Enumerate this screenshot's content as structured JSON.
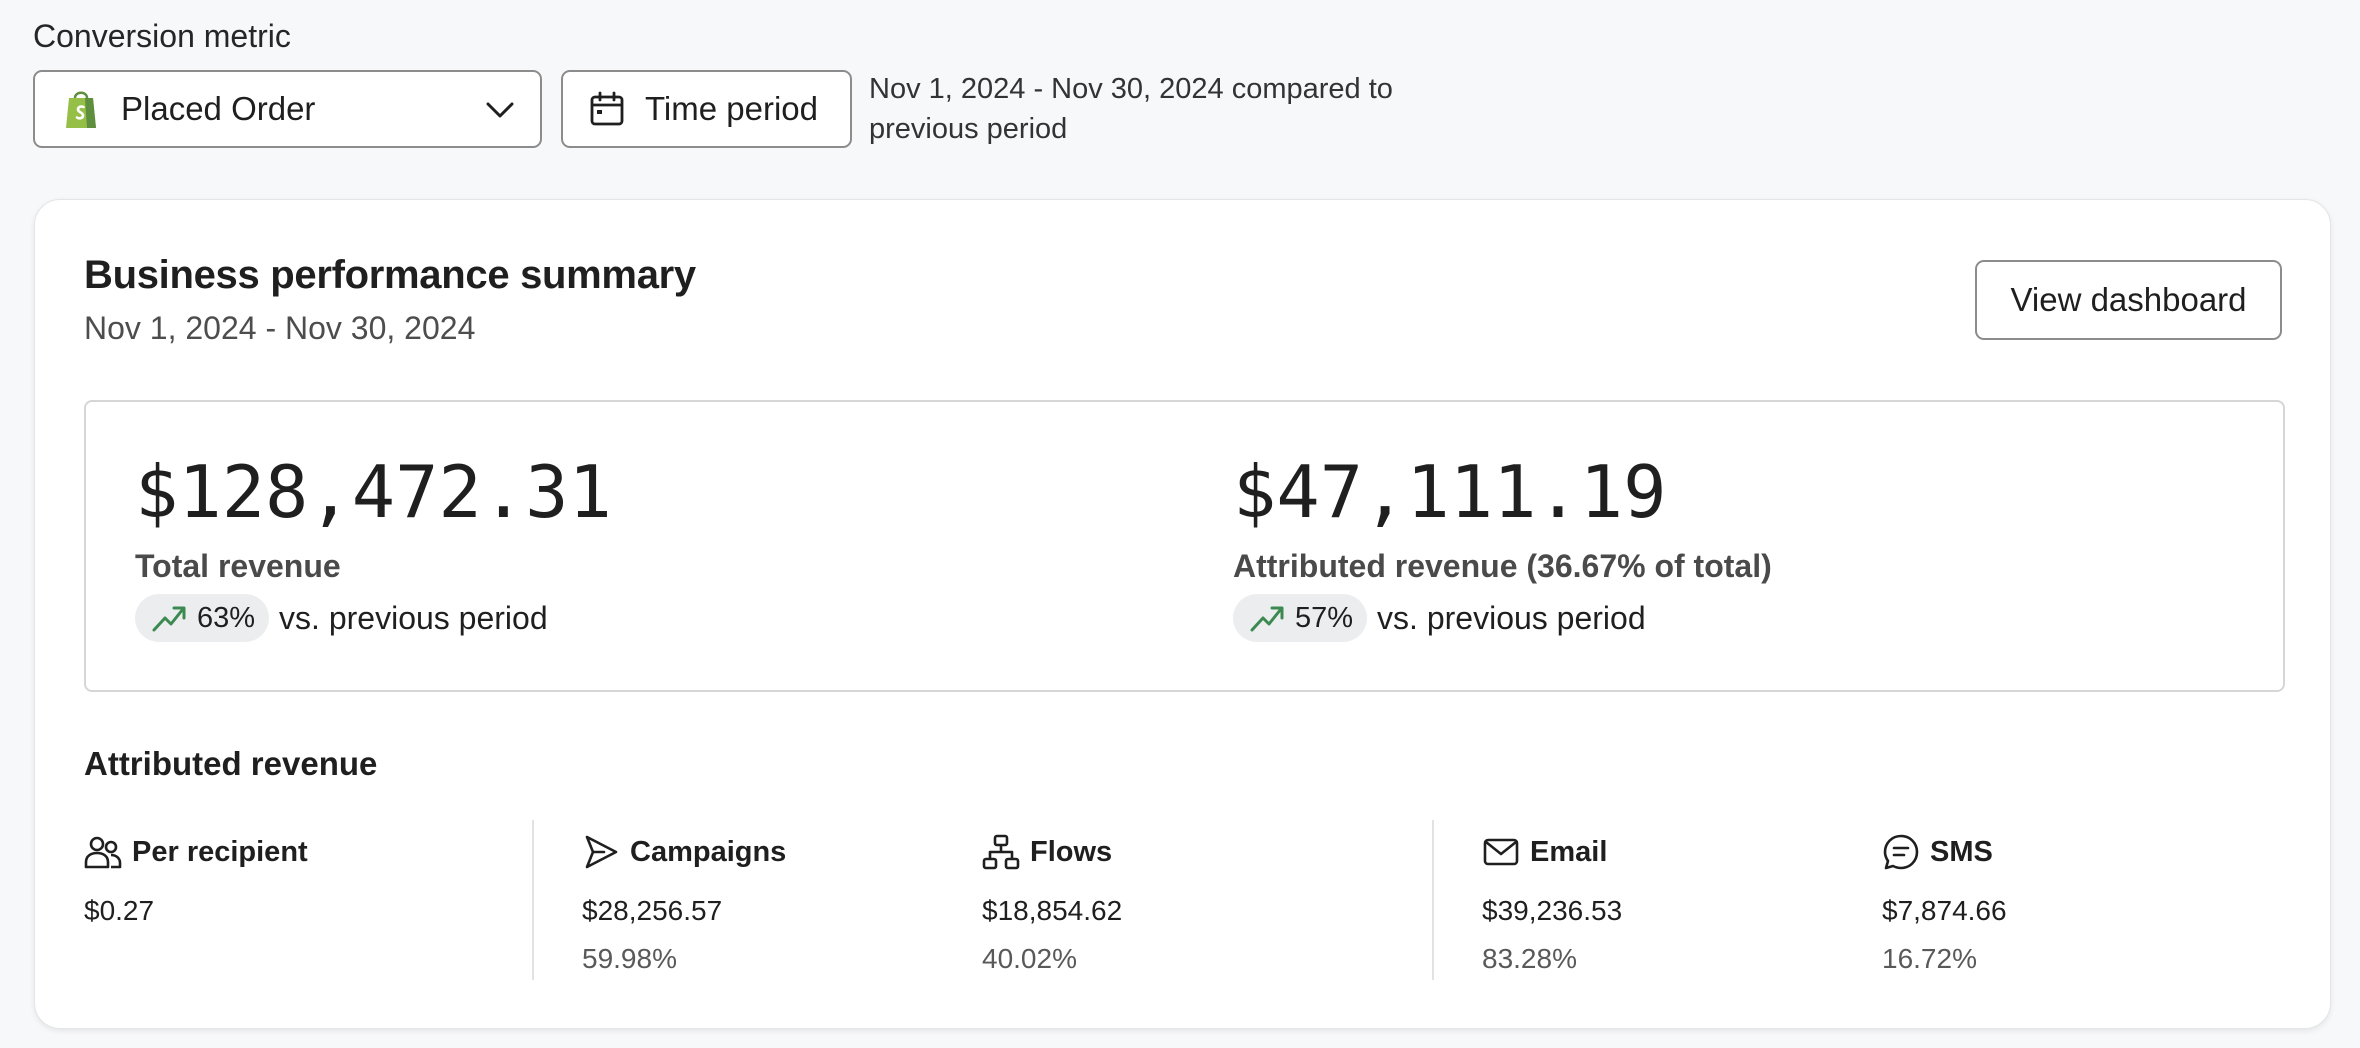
{
  "filters": {
    "metric_label": "Conversion metric",
    "metric_value": "Placed Order",
    "time_button": "Time period",
    "period_text": "Nov 1, 2024 - Nov 30, 2024 compared to previous period"
  },
  "summary": {
    "title": "Business performance summary",
    "subtitle": "Nov 1, 2024 - Nov 30, 2024",
    "view_button": "View dashboard",
    "total": {
      "amount": "$128,472.31",
      "label": "Total revenue",
      "change": "63%",
      "comparison": "vs. previous period"
    },
    "attributed": {
      "amount": "$47,111.19",
      "label": "Attributed revenue (36.67% of total)",
      "change": "57%",
      "comparison": "vs. previous period"
    }
  },
  "attributed_revenue": {
    "title": "Attributed revenue",
    "stats": [
      {
        "name": "Per recipient",
        "value": "$0.27",
        "percent": "",
        "icon": "people-icon"
      },
      {
        "name": "Campaigns",
        "value": "$28,256.57",
        "percent": "59.98%",
        "icon": "send-icon"
      },
      {
        "name": "Flows",
        "value": "$18,854.62",
        "percent": "40.02%",
        "icon": "flow-icon"
      },
      {
        "name": "Email",
        "value": "$39,236.53",
        "percent": "83.28%",
        "icon": "mail-icon"
      },
      {
        "name": "SMS",
        "value": "$7,874.66",
        "percent": "16.72%",
        "icon": "chat-icon"
      }
    ]
  },
  "colors": {
    "trend_up": "#3c8a52",
    "shopify_green": "#95bf47"
  }
}
